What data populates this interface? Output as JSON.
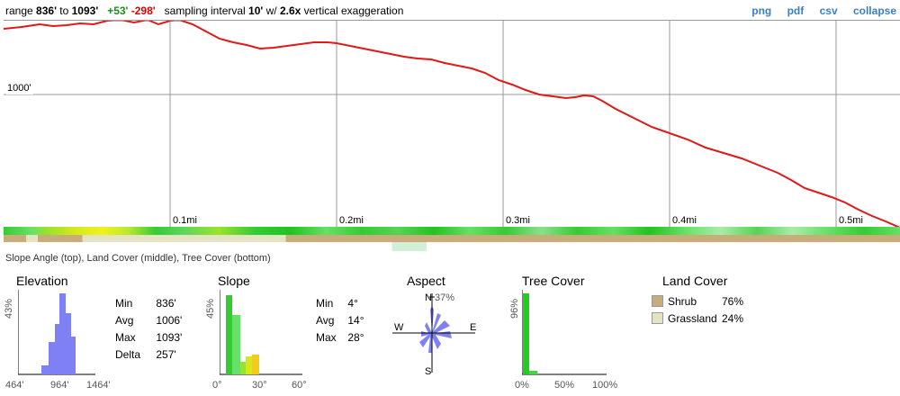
{
  "header": {
    "range_prefix": "range",
    "range_min": "836'",
    "range_to": "to",
    "range_max": "1093'",
    "gain": "+53'",
    "loss": "-298'",
    "sampling_prefix": "sampling interval",
    "sampling_value": "10'",
    "w_label": "w/",
    "exaggeration_value": "2.6x",
    "exaggeration_suffix": "vertical exaggeration"
  },
  "links": {
    "png": "png",
    "pdf": "pdf",
    "csv": "csv",
    "collapse": "collapse"
  },
  "profile": {
    "elevation_label": "1000'",
    "distance_labels": [
      "0.1mi",
      "0.2mi",
      "0.3mi",
      "0.4mi",
      "0.5mi"
    ],
    "line_color": "#e01818"
  },
  "strips": {
    "caption": "Slope Angle (top), Land Cover (middle), Tree Cover (bottom)"
  },
  "elevation": {
    "title": "Elevation",
    "y_label": "43%",
    "x_labels": [
      "464'",
      "964'",
      "1464'"
    ],
    "stats": [
      {
        "key": "Min",
        "value": "836'"
      },
      {
        "key": "Avg",
        "value": "1006'"
      },
      {
        "key": "Max",
        "value": "1093'"
      },
      {
        "key": "Delta",
        "value": "257'"
      }
    ]
  },
  "slope": {
    "title": "Slope",
    "y_label": "45%",
    "x_labels": [
      "0°",
      "30°",
      "60°"
    ],
    "stats": [
      {
        "key": "Min",
        "value": "4°"
      },
      {
        "key": "Avg",
        "value": "14°"
      },
      {
        "key": "Max",
        "value": "28°"
      }
    ]
  },
  "aspect": {
    "title": "Aspect",
    "max_label": "37%",
    "directions": {
      "n": "N",
      "s": "S",
      "e": "E",
      "w": "W"
    }
  },
  "tree_cover": {
    "title": "Tree Cover",
    "y_label": "96%",
    "x_labels": [
      "0%",
      "50%",
      "100%"
    ]
  },
  "land_cover": {
    "title": "Land Cover",
    "items": [
      {
        "name": "Shrub",
        "percent": "76%",
        "color": "#c8ad7a"
      },
      {
        "name": "Grassland",
        "percent": "24%",
        "color": "#e4e4c4"
      }
    ]
  }
}
